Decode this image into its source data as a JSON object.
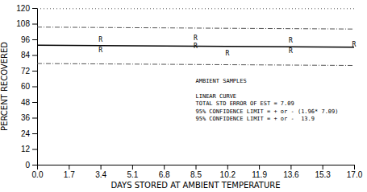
{
  "chart_data": {
    "type": "line",
    "xlabel": "DAYS STORED AT AMBIENT TEMPERATURE",
    "ylabel": "PERCENT RECOVERED",
    "xlim": [
      0.0,
      17.0
    ],
    "ylim": [
      0,
      120
    ],
    "xticks": [
      {
        "value": 0.0,
        "label": "0.0"
      },
      1.7,
      3.4,
      5.1,
      6.8,
      8.5,
      10.2,
      11.9,
      13.6,
      15.3,
      {
        "value": 17.0,
        "label": "17.0"
      }
    ],
    "yticks": [
      0,
      12,
      24,
      36,
      48,
      60,
      72,
      84,
      96,
      108,
      120
    ],
    "grid": false,
    "series": [
      {
        "type": "line",
        "x": [
          0.0,
          17.0
        ],
        "values": [
          119.5,
          119.5
        ],
        "color": "#555555",
        "line_style": "dotted"
      },
      {
        "type": "line",
        "x": [
          0.0,
          17.0
        ],
        "values": [
          105.4,
          103.9
        ],
        "color": "#555555",
        "line_style": "dashdot"
      },
      {
        "type": "line",
        "x": [
          0.0,
          17.0
        ],
        "values": [
          77.5,
          76.0
        ],
        "color": "#555555",
        "line_style": "dashdot"
      },
      {
        "type": "line",
        "x": [
          0.0,
          17.0
        ],
        "values": [
          91.5,
          90.0
        ],
        "color": "#000000",
        "line_style": "solid"
      },
      {
        "type": "scatter",
        "x": [
          3.4,
          3.4,
          8.5,
          8.5,
          10.2,
          13.6,
          13.6,
          17.0
        ],
        "values": [
          96,
          88,
          97,
          91,
          85.5,
          95,
          87,
          92
        ],
        "color": "#000000",
        "marker": "R"
      }
    ],
    "annotations": [
      [
        "AMBIENT SAMPLES"
      ],
      [
        "LINEAR CURVE",
        "TOTAL STD ERROR OF EST = 7.09",
        "95% CONFIDENCE LIMIT = + or - (1.96* 7.09)",
        "95% CONFIDENCE LIMIT = + or -  13.9"
      ]
    ]
  }
}
